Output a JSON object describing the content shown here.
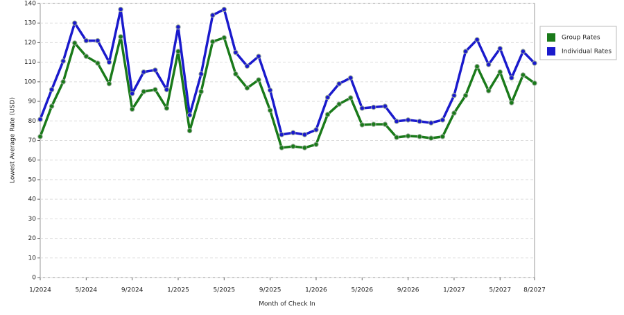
{
  "chart_data": {
    "type": "line",
    "x_label": "Month of Check In",
    "y_label": "Lowest Average Rate (USD)",
    "categories": [
      "1/2024",
      null,
      null,
      null,
      "5/2024",
      null,
      null,
      null,
      "9/2024",
      null,
      null,
      null,
      "1/2025",
      null,
      null,
      null,
      "5/2025",
      null,
      null,
      null,
      "9/2025",
      null,
      null,
      null,
      "1/2026",
      null,
      null,
      null,
      "5/2026",
      null,
      null,
      null,
      "9/2026",
      null,
      null,
      null,
      "1/2027",
      null,
      null,
      null,
      "5/2027",
      null,
      null,
      "8/2027"
    ],
    "series": [
      {
        "name": "Group Rates",
        "color": "#1a7a1a",
        "values": [
          72,
          87.5,
          100,
          119.8,
          113,
          109.5,
          99,
          123,
          86,
          95,
          96,
          86.5,
          115.5,
          75,
          95,
          120.5,
          122.5,
          104,
          96.8,
          101,
          85.4,
          66.3,
          67,
          66.3,
          68,
          83.3,
          88.6,
          91.8,
          78,
          78.3,
          78.3,
          71.6,
          72.3,
          72,
          71.2,
          72,
          84,
          93,
          107.8,
          95.4,
          105,
          89.3,
          103.5,
          99.3
        ]
      },
      {
        "name": "Individual Rates",
        "color": "#1a1acc",
        "values": [
          80.8,
          96,
          110.6,
          130,
          121,
          121,
          110,
          137,
          94,
          105,
          106,
          96,
          128,
          83,
          104,
          134,
          137,
          115,
          108,
          113,
          95.7,
          73,
          74,
          73,
          75.5,
          92,
          99,
          102,
          86.5,
          87,
          87.5,
          79.8,
          80.5,
          79.8,
          79,
          80.5,
          93,
          115.5,
          121.5,
          108.8,
          117,
          102,
          115.5,
          109.5
        ]
      }
    ],
    "ylim": [
      0,
      140
    ],
    "yticks": [
      0,
      10,
      20,
      30,
      40,
      50,
      60,
      70,
      80,
      90,
      100,
      110,
      120,
      130,
      140
    ],
    "grid": true,
    "legend": "right"
  }
}
